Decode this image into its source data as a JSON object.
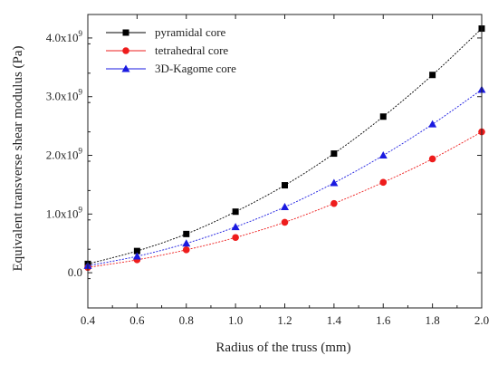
{
  "chart_data": {
    "type": "scatter",
    "title": "",
    "xlabel": "Radius of the truss (mm)",
    "ylabel": "Equivalent transverse shear modulus (Pa)",
    "xlim": [
      0.4,
      2.0
    ],
    "ylim": [
      -600000000.0,
      4400000000.0
    ],
    "x_ticks": [
      0.4,
      0.6,
      0.8,
      1.0,
      1.2,
      1.4,
      1.6,
      1.8,
      2.0
    ],
    "x_tick_labels": [
      "0.4",
      "0.6",
      "0.8",
      "1.0",
      "1.2",
      "1.4",
      "1.6",
      "1.8",
      "2.0"
    ],
    "y_ticks": [
      0,
      1000000000.0,
      2000000000.0,
      3000000000.0,
      4000000000.0
    ],
    "y_tick_labels": [
      {
        "mantissa": "0.0",
        "exp": ""
      },
      {
        "mantissa": "1.0x10",
        "exp": "9"
      },
      {
        "mantissa": "2.0x10",
        "exp": "9"
      },
      {
        "mantissa": "3.0x10",
        "exp": "9"
      },
      {
        "mantissa": "4.0x10",
        "exp": "9"
      }
    ],
    "grid": false,
    "legend_position": "top-left",
    "x": [
      0.4,
      0.6,
      0.8,
      1.0,
      1.2,
      1.4,
      1.6,
      1.8,
      2.0
    ],
    "series": [
      {
        "name": "pyramidal core",
        "marker": "square",
        "color": "#000000",
        "values": [
          150000000.0,
          370000000.0,
          660000000.0,
          1040000000.0,
          1490000000.0,
          2030000000.0,
          2660000000.0,
          3370000000.0,
          4160000000.0
        ]
      },
      {
        "name": "tetrahedral core",
        "marker": "circle",
        "color": "#ee1c1c",
        "values": [
          90000000.0,
          220000000.0,
          390000000.0,
          600000000.0,
          860000000.0,
          1180000000.0,
          1540000000.0,
          1940000000.0,
          2400000000.0
        ]
      },
      {
        "name": "3D-Kagome core",
        "marker": "triangle",
        "color": "#1a1ae0",
        "values": [
          120000000.0,
          280000000.0,
          500000000.0,
          780000000.0,
          1120000000.0,
          1530000000.0,
          2000000000.0,
          2530000000.0,
          3120000000.0
        ]
      }
    ]
  }
}
